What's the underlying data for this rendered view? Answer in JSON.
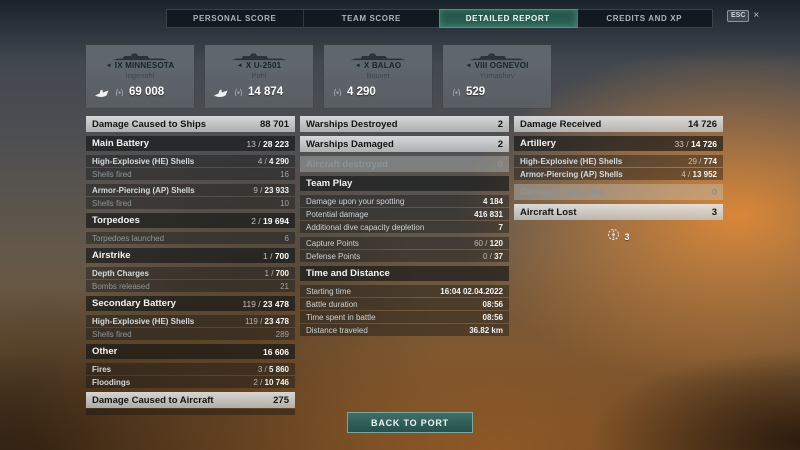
{
  "window": {
    "esc_key": "ESC",
    "close_symbol": "×"
  },
  "tabs": [
    {
      "label": "PERSONAL SCORE",
      "active": false
    },
    {
      "label": "TEAM SCORE",
      "active": false
    },
    {
      "label": "DETAILED REPORT",
      "active": true
    },
    {
      "label": "CREDITS AND XP",
      "active": false
    }
  ],
  "ships": [
    {
      "name": "IX MINNESOTA",
      "player": "Ingenohl",
      "value": "69 008",
      "sunk": true
    },
    {
      "name": "X U-2501",
      "player": "Pohl",
      "value": "14 874",
      "sunk": true
    },
    {
      "name": "X BALAO",
      "player": "Bouvet",
      "value": "4 290",
      "sunk": false
    },
    {
      "name": "VIII OGNEVOI",
      "player": "Yumashev",
      "value": "529",
      "sunk": false
    }
  ],
  "columns": {
    "left": {
      "rows": [
        {
          "type": "header",
          "label": "Damage Caused to Ships",
          "value": "88 701"
        },
        {
          "type": "subheader",
          "label": "Main Battery",
          "value": "13 / 28 223",
          "gap": true
        },
        {
          "type": "item",
          "label": "High-Explosive (HE) Shells",
          "value": "4 / 4 290",
          "gap": true
        },
        {
          "type": "dim",
          "label": "Shells fired",
          "value": "16"
        },
        {
          "type": "item",
          "label": "Armor-Piercing (AP) Shells",
          "value": "9 / 23 933",
          "gap": true
        },
        {
          "type": "dim",
          "label": "Shells fired",
          "value": "10"
        },
        {
          "type": "subheader",
          "label": "Torpedoes",
          "value": "2 / 19 694",
          "gap": true
        },
        {
          "type": "dim",
          "label": "Torpedoes launched",
          "value": "6",
          "gap": true
        },
        {
          "type": "subheader",
          "label": "Airstrike",
          "value": "1 / 700",
          "gap": true
        },
        {
          "type": "item",
          "label": "Depth Charges",
          "value": "1 / 700",
          "gap": true
        },
        {
          "type": "dim",
          "label": "Bombs released",
          "value": "21"
        },
        {
          "type": "subheader",
          "label": "Secondary Battery",
          "value": "119 / 23 478",
          "gap": true
        },
        {
          "type": "item",
          "label": "High-Explosive (HE) Shells",
          "value": "119 / 23 478",
          "gap": true
        },
        {
          "type": "dim",
          "label": "Shells fired",
          "value": "289"
        },
        {
          "type": "subheader",
          "label": "Other",
          "value": "16 606",
          "gap": true
        },
        {
          "type": "item",
          "label": "Fires",
          "value": "3 / 5 860",
          "gap": true
        },
        {
          "type": "item",
          "label": "Floodings",
          "value": "2 / 10 746"
        },
        {
          "type": "header",
          "label": "Damage Caused to Aircraft",
          "value": "275",
          "gap": true
        },
        {
          "type": "clipped",
          "label": "",
          "value": ""
        }
      ]
    },
    "middle": {
      "rows": [
        {
          "type": "header",
          "label": "Warships Destroyed",
          "value": "2"
        },
        {
          "type": "header",
          "label": "Warships Damaged",
          "value": "2",
          "gap": true
        },
        {
          "type": "dimheader",
          "label": "Aircraft destroyed",
          "value": "0",
          "gap": true
        },
        {
          "type": "subheader",
          "label": "Team Play",
          "value": "",
          "gap": true
        },
        {
          "type": "item",
          "label": "Damage upon your spotting",
          "value": "4 184",
          "gap": true
        },
        {
          "type": "item",
          "label": "Potential damage",
          "value": "416 831"
        },
        {
          "type": "item",
          "label": "Additional dive capacity depletion",
          "value": "7"
        },
        {
          "type": "item",
          "label": "Capture Points",
          "value": "60 / 120",
          "gap": true
        },
        {
          "type": "item",
          "label": "Defense Points",
          "value": "0 / 37"
        },
        {
          "type": "subheader",
          "label": "Time and Distance",
          "value": "",
          "gap": true
        },
        {
          "type": "item",
          "label": "Starting time",
          "value": "16:04 02.04.2022",
          "gap": true
        },
        {
          "type": "item",
          "label": "Battle duration",
          "value": "08:56"
        },
        {
          "type": "item",
          "label": "Time spent in battle",
          "value": "08:56"
        },
        {
          "type": "item",
          "label": "Distance traveled",
          "value": "36.82 km"
        }
      ]
    },
    "right": {
      "rows": [
        {
          "type": "header",
          "label": "Damage Received",
          "value": "14 726"
        },
        {
          "type": "subheader",
          "label": "Artillery",
          "value": "33 / 14 726",
          "gap": true
        },
        {
          "type": "item",
          "label": "High-Explosive (HE) Shells",
          "value": "29 / 774",
          "gap": true
        },
        {
          "type": "item",
          "label": "Armor-Piercing (AP) Shells",
          "value": "4 / 13 952"
        },
        {
          "type": "dimheader",
          "label": "Damaged Modules",
          "value": "0",
          "gap": true
        },
        {
          "type": "header",
          "label": "Aircraft Lost",
          "value": "3",
          "gap": true
        }
      ]
    }
  },
  "right_extra": {
    "icon": "fighter-aircraft-icon",
    "count": "3"
  },
  "footer": {
    "back_to_port": "BACK TO PORT"
  }
}
